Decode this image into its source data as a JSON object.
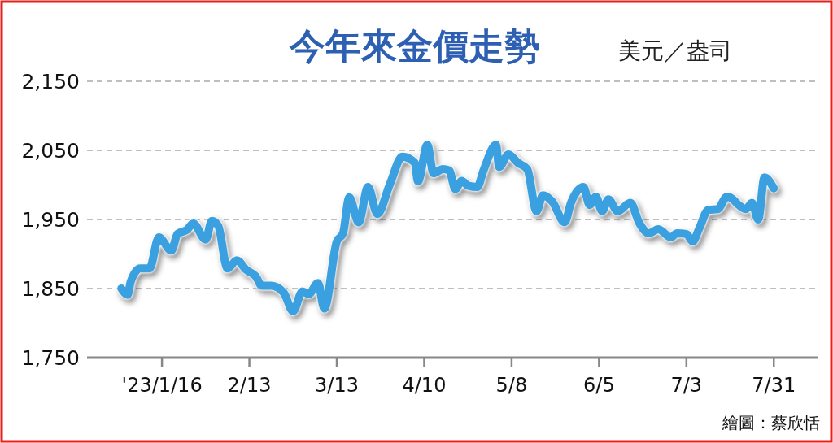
{
  "chart_data": {
    "type": "line",
    "title": "今年來金價走勢",
    "subtitle": "美元／盎司",
    "annotations": [
      "繪圖：蔡欣恬"
    ],
    "x": [
      "2023-01-03",
      "2023-01-05",
      "2023-01-06",
      "2023-01-09",
      "2023-01-12",
      "2023-01-15",
      "2023-01-19",
      "2023-01-21",
      "2023-01-24",
      "2023-01-26",
      "2023-01-30",
      "2023-02-01",
      "2023-02-03",
      "2023-02-06",
      "2023-02-09",
      "2023-02-12",
      "2023-02-15",
      "2023-02-17",
      "2023-02-20",
      "2023-02-24",
      "2023-02-27",
      "2023-03-02",
      "2023-03-04",
      "2023-03-07",
      "2023-03-09",
      "2023-03-13",
      "2023-03-15",
      "2023-03-17",
      "2023-03-20",
      "2023-03-23",
      "2023-03-26",
      "2023-03-30",
      "2023-04-03",
      "2023-04-07",
      "2023-04-08",
      "2023-04-11",
      "2023-04-13",
      "2023-04-16",
      "2023-04-18",
      "2023-04-20",
      "2023-04-22",
      "2023-04-24",
      "2023-04-27",
      "2023-04-29",
      "2023-05-03",
      "2023-05-04",
      "2023-05-07",
      "2023-05-10",
      "2023-05-13",
      "2023-05-16",
      "2023-05-18",
      "2023-05-21",
      "2023-05-25",
      "2023-05-27",
      "2023-05-31",
      "2023-06-02",
      "2023-06-04",
      "2023-06-06",
      "2023-06-08",
      "2023-06-11",
      "2023-06-15",
      "2023-06-18",
      "2023-06-21",
      "2023-06-24",
      "2023-06-28",
      "2023-06-30",
      "2023-07-03",
      "2023-07-05",
      "2023-07-07",
      "2023-07-10",
      "2023-07-13",
      "2023-07-16",
      "2023-07-17",
      "2023-07-20",
      "2023-07-22",
      "2023-07-24",
      "2023-07-26",
      "2023-07-28",
      "2023-07-31"
    ],
    "series": [
      {
        "color": "#3ba0e0",
        "values": [
          1850,
          1841,
          1860,
          1879,
          1879,
          1924,
          1905,
          1929,
          1935,
          1944,
          1921,
          1948,
          1941,
          1879,
          1891,
          1877,
          1868,
          1854,
          1854,
          1844,
          1817,
          1846,
          1842,
          1858,
          1821,
          1918,
          1930,
          1982,
          1946,
          1997,
          1958,
          2001,
          2041,
          2032,
          2005,
          2058,
          2017,
          2023,
          2021,
          1994,
          2006,
          1999,
          1997,
          2021,
          2058,
          2026,
          2044,
          2032,
          2023,
          1962,
          1985,
          1976,
          1946,
          1974,
          1997,
          1971,
          1983,
          1962,
          1979,
          1962,
          1974,
          1944,
          1930,
          1936,
          1924,
          1930,
          1929,
          1918,
          1936,
          1964,
          1965,
          1983,
          1982,
          1970,
          1965,
          1974,
          1950,
          2011,
          1995
        ]
      }
    ],
    "xlim": [
      "2022-12-23",
      "2023-08-14"
    ],
    "xticks": [
      {
        "value": "2023-01-16",
        "label": "'23/1/16"
      },
      {
        "value": "2023-02-13",
        "label": "2/13"
      },
      {
        "value": "2023-03-13",
        "label": "3/13"
      },
      {
        "value": "2023-04-10",
        "label": "4/10"
      },
      {
        "value": "2023-05-08",
        "label": "5/8"
      },
      {
        "value": "2023-06-05",
        "label": "6/5"
      },
      {
        "value": "2023-07-03",
        "label": "7/3"
      },
      {
        "value": "2023-07-31",
        "label": "7/31"
      }
    ],
    "ylim": [
      1750,
      2150
    ],
    "yticks": [
      {
        "value": 1750,
        "label": "1,750"
      },
      {
        "value": 1850,
        "label": "1,850"
      },
      {
        "value": 1950,
        "label": "1,950"
      },
      {
        "value": 2050,
        "label": "2,050"
      },
      {
        "value": 2150,
        "label": "2,150"
      }
    ],
    "grid": "y",
    "line_style": "solid"
  }
}
